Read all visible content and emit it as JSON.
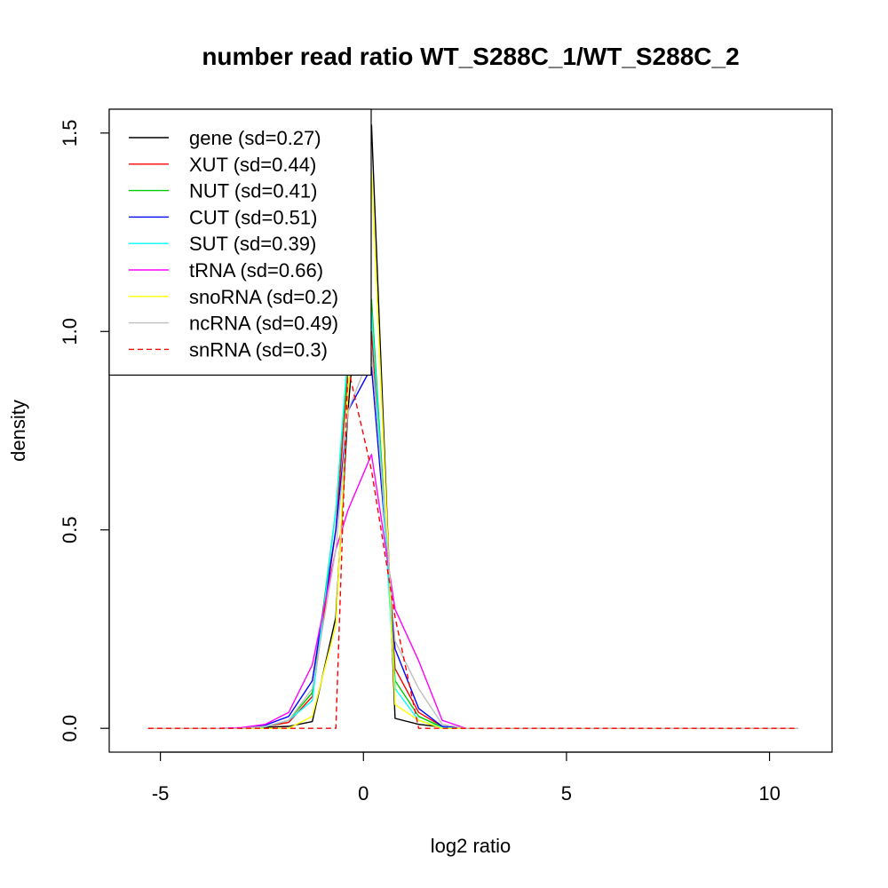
{
  "chart_data": {
    "type": "line",
    "title": "number read ratio WT_S288C_1/WT_S288C_2",
    "xlabel": "log2 ratio",
    "ylabel": "density",
    "xlim": [
      -6.26,
      11.54
    ],
    "ylim": [
      -0.06,
      1.56
    ],
    "x_ticks": [
      -5,
      0,
      5,
      10
    ],
    "x_tick_labels": [
      "-5",
      "0",
      "5",
      "10"
    ],
    "y_ticks": [
      0,
      0.5,
      1,
      1.5
    ],
    "y_tick_labels": [
      "0.0",
      "0.5",
      "1.0",
      "1.5"
    ],
    "grid": false,
    "legend_position": "top-left",
    "x": [
      -5.3,
      -4.74,
      -4.16,
      -3.58,
      -3.0,
      -2.42,
      -1.84,
      -1.26,
      -0.68,
      -0.38,
      0.2,
      0.78,
      1.36,
      1.94,
      2.52,
      3.1,
      3.68,
      4.26,
      10.7
    ],
    "series": [
      {
        "name": "gene (sd=0.27)",
        "color": "#000000",
        "dash": "solid",
        "values": [
          0,
          0,
          0,
          0,
          0,
          0.003,
          0.005,
          0.017,
          0.28,
          0.8,
          1.52,
          0.025,
          0.01,
          0.003,
          0,
          0,
          0,
          0,
          0
        ]
      },
      {
        "name": "XUT (sd=0.44)",
        "color": "#ff0000",
        "dash": "solid",
        "values": [
          0,
          0,
          0,
          0,
          0,
          0.005,
          0.015,
          0.08,
          0.5,
          0.9,
          1.0,
          0.15,
          0.04,
          0.005,
          0,
          0,
          0,
          0,
          0
        ]
      },
      {
        "name": "NUT (sd=0.41)",
        "color": "#00cc00",
        "dash": "solid",
        "values": [
          0,
          0,
          0,
          0,
          0,
          0.004,
          0.02,
          0.09,
          0.55,
          0.92,
          1.08,
          0.12,
          0.03,
          0.003,
          0,
          0,
          0,
          0,
          0
        ]
      },
      {
        "name": "CUT (sd=0.51)",
        "color": "#0000ff",
        "dash": "solid",
        "values": [
          0,
          0,
          0,
          0,
          0,
          0.008,
          0.03,
          0.12,
          0.5,
          0.8,
          0.91,
          0.2,
          0.05,
          0.005,
          0,
          0,
          0,
          0,
          0
        ]
      },
      {
        "name": "SUT (sd=0.39)",
        "color": "#00ffff",
        "dash": "solid",
        "values": [
          0,
          0,
          0,
          0,
          0,
          0.004,
          0.02,
          0.07,
          0.55,
          0.95,
          1.05,
          0.1,
          0.02,
          0.002,
          0,
          0,
          0,
          0,
          0
        ]
      },
      {
        "name": "tRNA (sd=0.66)",
        "color": "#ff00ff",
        "dash": "solid",
        "values": [
          0,
          0,
          0,
          0,
          0.002,
          0.01,
          0.04,
          0.16,
          0.45,
          0.55,
          0.69,
          0.3,
          0.17,
          0.02,
          0,
          0,
          0,
          0,
          0
        ]
      },
      {
        "name": "snoRNA (sd=0.2)",
        "color": "#ffff00",
        "dash": "solid",
        "values": [
          0,
          0,
          0,
          0,
          0,
          0,
          0,
          0.03,
          0.26,
          0.85,
          1.4,
          0.06,
          0.02,
          0,
          0,
          0,
          0,
          0,
          0
        ]
      },
      {
        "name": "ncRNA (sd=0.49)",
        "color": "#bebebe",
        "dash": "solid",
        "values": [
          0,
          0,
          0,
          0,
          0,
          0.005,
          0.02,
          0.1,
          0.45,
          0.8,
          0.95,
          0.22,
          0.1,
          0.01,
          0,
          0,
          0,
          0,
          0
        ]
      },
      {
        "name": "snRNA (sd=0.3)",
        "color": "#ff0000",
        "dash": "dashed",
        "values": [
          0,
          0,
          0,
          0,
          0,
          0,
          0,
          0,
          0,
          0.91,
          0.65,
          0.28,
          0,
          0,
          0,
          0,
          0,
          0,
          0
        ]
      }
    ]
  }
}
